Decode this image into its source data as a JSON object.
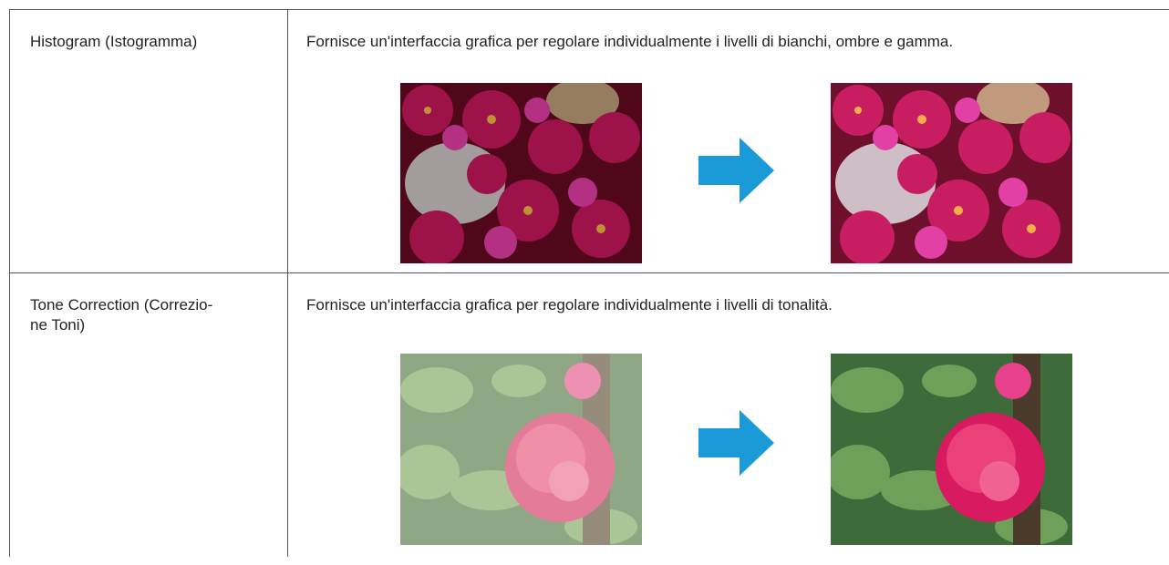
{
  "table": {
    "rows": [
      {
        "label": [
          "Histogram (Istogramma)"
        ],
        "description": "Fornisce un'interfaccia grafica per regolare individualmente i livelli di bianchi, ombre e gamma."
      },
      {
        "label": [
          "Tone Correction (Correzio-",
          "ne Toni)"
        ],
        "description": "Fornisce un'interfaccia grafica per regolare individualmente i livelli di tonalità."
      }
    ]
  }
}
